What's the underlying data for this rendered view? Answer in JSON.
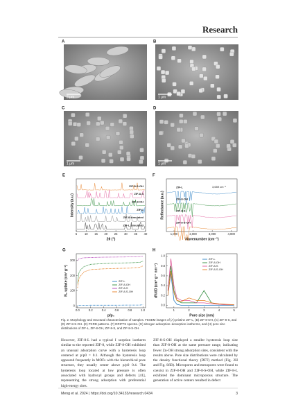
{
  "header": {
    "title": "Research"
  },
  "figure": {
    "panels": [
      {
        "letter": "A",
        "scale_bar": "2 μm"
      },
      {
        "letter": "B",
        "scale_bar": "1 μm"
      },
      {
        "letter": "C",
        "scale_bar": "1 μm"
      },
      {
        "letter": "D",
        "scale_bar": "1 μm"
      }
    ],
    "charts": [
      {
        "letter": "E",
        "type": "traces",
        "xlabel": "2θ (°)",
        "ylabel": "Intensity (a.u.)",
        "xlim": [
          5,
          40
        ],
        "xticks": [
          5,
          10,
          15,
          20,
          25,
          30,
          35,
          40
        ],
        "labels": [
          {
            "text": "ZIF-8-S-OH",
            "color": "#e67e22"
          },
          {
            "text": "ZIF-8-S",
            "color": "#e05a9a"
          },
          {
            "text": "ZIF-8-OH",
            "color": "#2e8b3a"
          },
          {
            "text": "ZIF-L",
            "color": "#2a7fc4"
          },
          {
            "text": "ZIF-8 simulated",
            "color": "#888888"
          },
          {
            "text": "ZIF-L simulated",
            "color": "#333333"
          }
        ]
      },
      {
        "letter": "F",
        "type": "spectra",
        "xlabel": "Wavenumber (cm⁻¹)",
        "ylabel": "Reflectance (a.u.)",
        "xlim": [
          600,
          4300
        ],
        "xticks": [
          {
            "value": 1000,
            "label": "1,000"
          },
          {
            "value": 2000,
            "label": "2,000"
          },
          {
            "value": 3000,
            "label": "3,000"
          },
          {
            "value": 4000,
            "label": "4,000"
          }
        ],
        "labels": [
          {
            "text": "ZIF-L",
            "color": "#2a7fc4"
          },
          {
            "text": "ZIF-8-OH",
            "color": "#2e8b3a"
          },
          {
            "text": "ZIF-8-S",
            "color": "#e05a9a"
          },
          {
            "text": "ZIF-8-S-OH",
            "color": "#e67e22"
          }
        ],
        "annotation": "3,659 cm⁻¹"
      },
      {
        "letter": "G",
        "type": "line",
        "xlabel": "p/p₀",
        "ylabel": "N₂ uptake (cm³ g⁻¹)",
        "xlim": [
          -0.02,
          1.04
        ],
        "xticks": [
          {
            "value": 0,
            "label": "0.0"
          },
          0.2,
          0.4,
          0.6,
          0.8,
          {
            "value": 1,
            "label": "1.0"
          }
        ],
        "ylim": [
          -12,
          345
        ],
        "yticks": [
          0,
          100,
          200,
          300
        ],
        "x": [
          0,
          0.02,
          0.05,
          0.1,
          0.2,
          0.4,
          0.6,
          0.8,
          0.95,
          1.0
        ],
        "series": [
          {
            "name": "ZIF-L",
            "color": "#2a7fc4",
            "values": [
              2,
              3,
              4,
              4,
              5,
              5,
              5,
              6,
              6,
              8
            ]
          },
          {
            "name": "ZIF-8-OH",
            "color": "#2e8b3a",
            "values": [
              150,
              220,
              240,
              260,
              275,
              280,
              283,
              285,
              288,
              295
            ]
          },
          {
            "name": "ZIF-8-S",
            "color": "#b23cb5",
            "values": [
              300,
              310,
              315,
              318,
              320,
              322,
              323,
              324,
              326,
              330
            ]
          },
          {
            "name": "ZIF-8-S-OH",
            "color": "#e67e22",
            "values": [
              120,
              180,
              200,
              225,
              240,
              245,
              248,
              250,
              255,
              265
            ]
          }
        ]
      },
      {
        "letter": "H",
        "type": "line",
        "xlabel": "Pore size (nm)",
        "ylabel": "dV/dD (cm³ g⁻¹ nm⁻¹)",
        "xlim": [
          0.5,
          5.2
        ],
        "xticks": [
          1,
          2,
          3,
          4,
          5
        ],
        "ylim": [
          -0.05,
          1.05
        ],
        "yticks": [
          {
            "value": 0,
            "label": "0.0"
          },
          0.2,
          0.4,
          0.6,
          0.8,
          {
            "value": 1,
            "label": "1.0"
          }
        ],
        "x": [
          0.6,
          0.8,
          1.0,
          1.2,
          1.5,
          2,
          2.5,
          3,
          3.5,
          4,
          4.5,
          5
        ],
        "series": [
          {
            "name": "ZIF-L",
            "color": "#2a7fc4",
            "values": [
              0.2,
              0.65,
              0.1,
              0.02,
              0,
              0,
              0,
              0,
              0,
              0,
              0,
              0
            ]
          },
          {
            "name": "ZIF-8-OH",
            "color": "#2e8b3a",
            "values": [
              0.3,
              0.8,
              0.3,
              0.1,
              0.05,
              0.05,
              0.05,
              0.3,
              0.05,
              0.02,
              0.01,
              0.01
            ]
          },
          {
            "name": "ZIF-8-S",
            "color": "#e05a9a",
            "values": [
              0.3,
              0.95,
              0.4,
              0.15,
              0.1,
              0.1,
              0.05,
              0.05,
              0.03,
              0.02,
              0.01,
              0.01
            ]
          },
          {
            "name": "ZIF-8-S-OH",
            "color": "#e67e22",
            "values": [
              0.2,
              0.7,
              0.25,
              0.1,
              0.08,
              0.15,
              0.1,
              0.1,
              0.05,
              0.03,
              0.02,
              0.01
            ]
          }
        ]
      }
    ],
    "caption": "Fig. 2. Morphology and structural characterization of samples. FESEM images of (A) pristine ZIF-L, (B) ZIF-8-OH, (C) ZIF-8-S, and (D) ZIF-8-S-OH. (E) PXRD patterns. (F) DRIFTS spectra. (G) nitrogen adsorption–desorption isotherms, and (H) pore size distributions of ZIF-L, ZIF-8-OH, ZIF-8-S, and ZIF-8-S-OH."
  },
  "body": {
    "columns": [
      "However, ZIF-8-L had a typical I sorption isotherm similar to the reported ZIF-8, while ZIF-8-OH exhibited an unusual adsorption curve with a hysteresis loop centered at p/p0 = 0.1. Although the hysteresis loop appeared frequently in MOFs with the hierarchical pore structure, they usually center above p/p0 0.4. The hysteresis loop located at low pressure is often associated with hydroxyl groups and defects [41], representing the strong adsorption with preferential high-energy sites.",
      "ZIF-8-S-OH displayed a smaller hysteresis loop size than ZIF-8-OH at the same pressure range, indicating fewer Zn-OH strong adsorption sites, consistent with the results above. Pore size distributions were calculated by the density functional theory (DFT) method (Fig. 2H and Fig. S6B). Micropores and mesopores were found to coexist in ZIF-8-OH and ZIF-8-S-OH, while ZIF-8-L exhibited the dominant microporous structure. The generation of active centers resulted in defect"
    ]
  },
  "footer": {
    "citation": "Meng et al. 2024 | https://doi.org/10.34133/research.0434",
    "page": 3
  }
}
